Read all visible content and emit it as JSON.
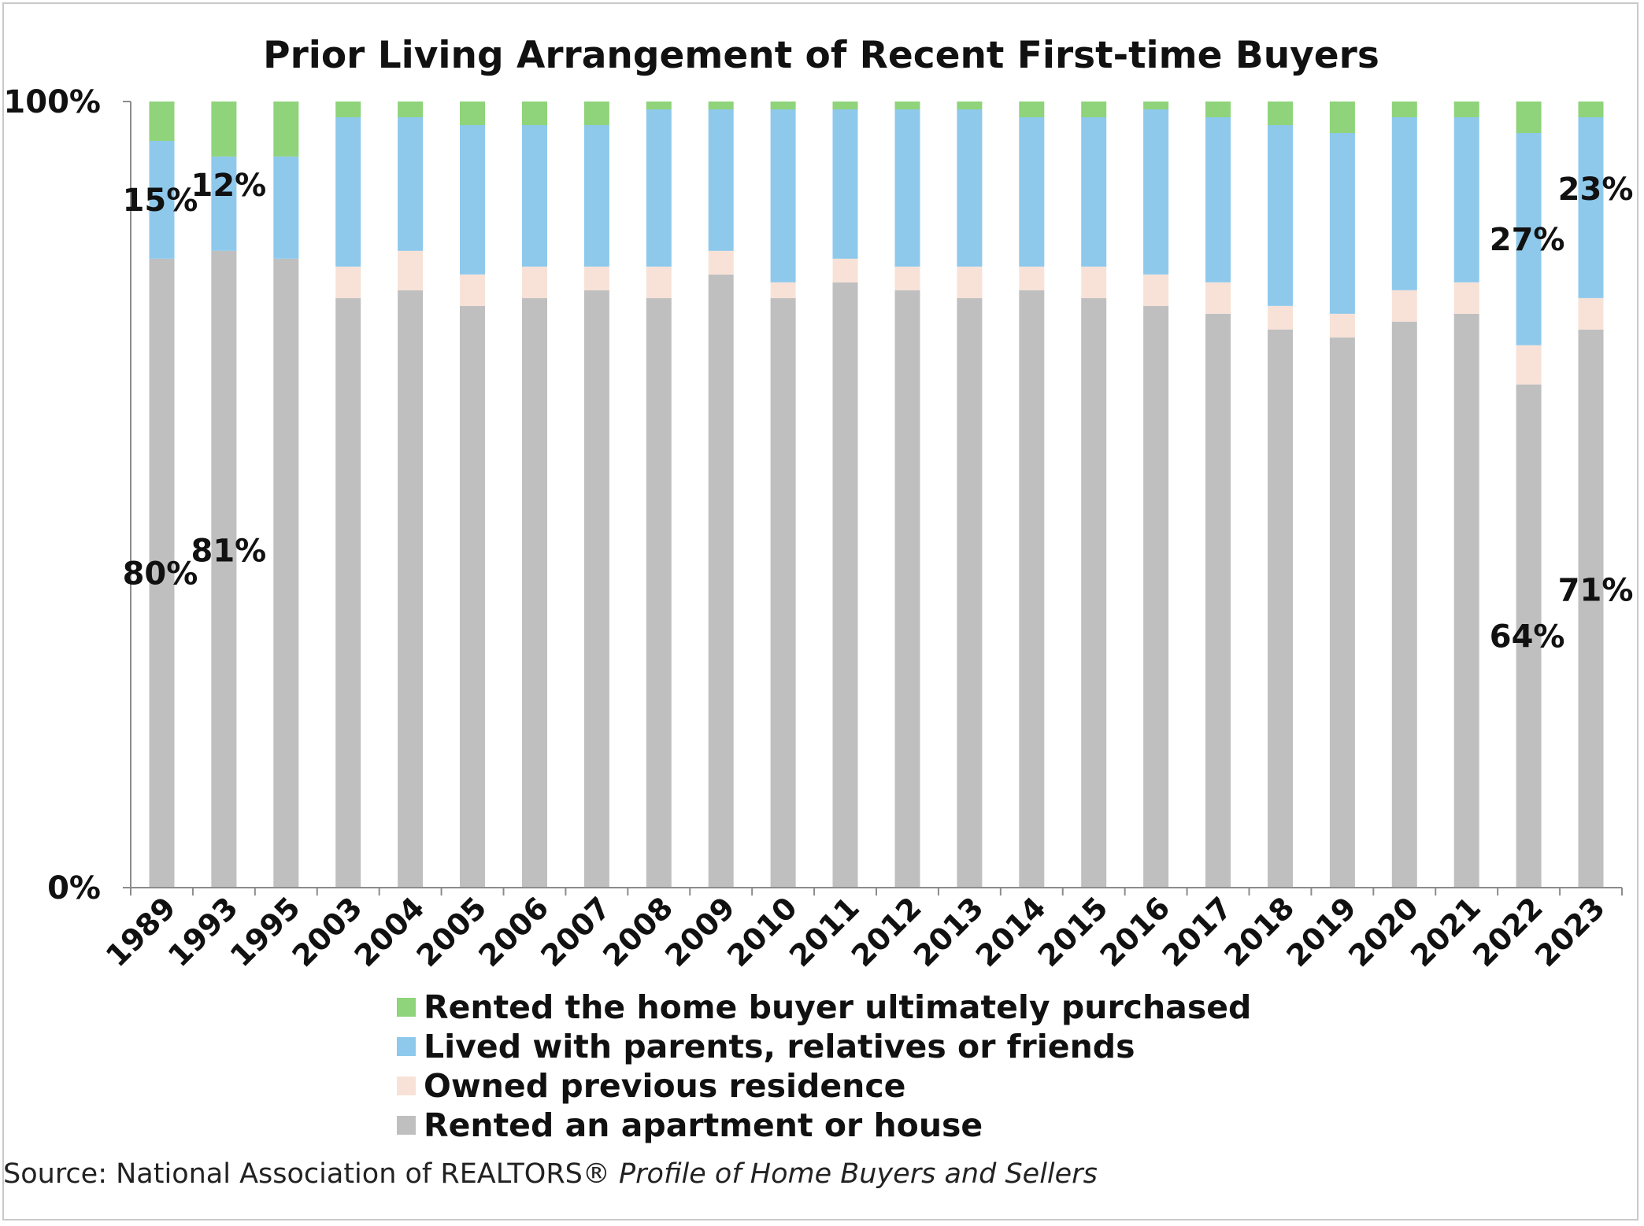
{
  "chart_data": {
    "type": "bar",
    "stacked": true,
    "title": "Prior Living Arrangement of Recent First-time Buyers",
    "categories": [
      "1989",
      "1993",
      "1995",
      "2003",
      "2004",
      "2005",
      "2006",
      "2007",
      "2008",
      "2009",
      "2010",
      "2011",
      "2012",
      "2013",
      "2014",
      "2015",
      "2016",
      "2017",
      "2018",
      "2019",
      "2020",
      "2021",
      "2022",
      "2023"
    ],
    "ylim": [
      0,
      100
    ],
    "yticks": [
      "0%",
      "100%"
    ],
    "grid": false,
    "legend_position": "bottom",
    "series": [
      {
        "name": "Rented an apartment or house",
        "color": "#bfbfbf",
        "values": [
          80,
          81,
          80,
          75,
          76,
          74,
          75,
          76,
          75,
          78,
          75,
          77,
          76,
          75,
          76,
          75,
          74,
          73,
          71,
          70,
          72,
          73,
          64,
          71
        ]
      },
      {
        "name": "Owned previous residence",
        "color": "#f8e2d7",
        "values": [
          0,
          0,
          0,
          4,
          5,
          4,
          4,
          3,
          4,
          3,
          2,
          3,
          3,
          4,
          3,
          4,
          4,
          4,
          3,
          3,
          4,
          4,
          5,
          4
        ]
      },
      {
        "name": "Lived with parents, relatives or friends",
        "color": "#8ec9ec",
        "values": [
          15,
          12,
          13,
          19,
          17,
          19,
          18,
          18,
          20,
          18,
          22,
          19,
          20,
          20,
          19,
          19,
          21,
          21,
          23,
          23,
          22,
          21,
          27,
          23
        ]
      },
      {
        "name": "Rented the home buyer ultimately purchased",
        "color": "#8fd37a",
        "values": [
          5,
          7,
          7,
          2,
          2,
          3,
          3,
          3,
          1,
          1,
          1,
          1,
          1,
          1,
          2,
          2,
          1,
          2,
          3,
          4,
          2,
          2,
          4,
          2
        ]
      }
    ],
    "annotations": [
      {
        "category": "1989",
        "series": "Rented an apartment or house",
        "text": "80%"
      },
      {
        "category": "1993",
        "series": "Rented an apartment or house",
        "text": "81%"
      },
      {
        "category": "2022",
        "series": "Rented an apartment or house",
        "text": "64%"
      },
      {
        "category": "2023",
        "series": "Rented an apartment or house",
        "text": "71%"
      },
      {
        "category": "1989",
        "series": "Lived with parents, relatives or friends",
        "text": "15%"
      },
      {
        "category": "1993",
        "series": "Lived with parents, relatives or friends",
        "text": "12%"
      },
      {
        "category": "2022",
        "series": "Lived with parents, relatives or friends",
        "text": "27%"
      },
      {
        "category": "2023",
        "series": "Lived with parents, relatives or friends",
        "text": "23%"
      }
    ],
    "legend": [
      "Rented the home buyer ultimately purchased",
      "Lived with parents, relatives or friends",
      "Owned previous residence",
      "Rented an apartment or house"
    ]
  },
  "source": {
    "prefix": "Source: National Association of REALTORS®",
    "italic": "Profile of Home Buyers and Sellers"
  }
}
